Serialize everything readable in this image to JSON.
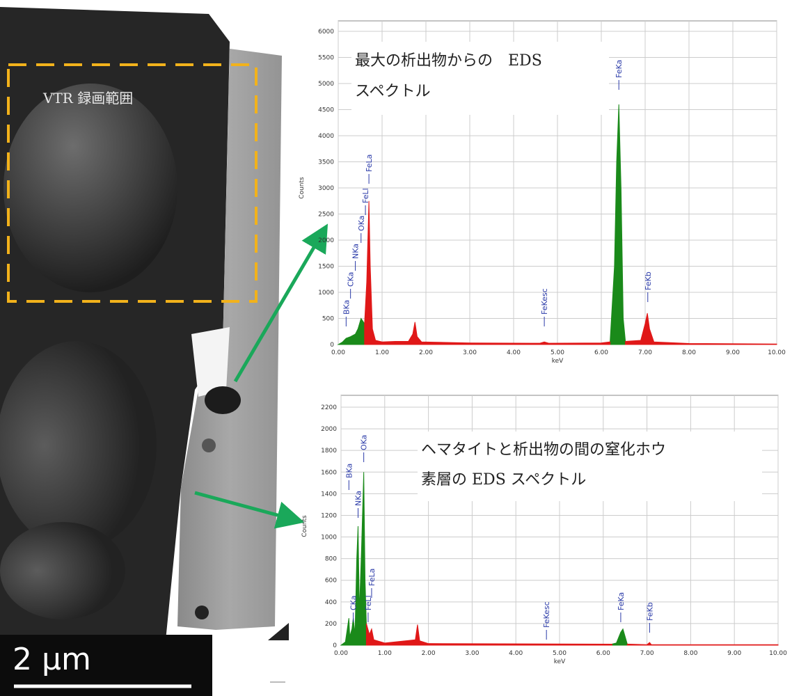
{
  "image": {
    "region_label": "VTR 録画範囲",
    "scale_bar": "2 µm"
  },
  "chart_data": [
    {
      "type": "area",
      "annotation_lines": [
        "最大の析出物からの　EDS",
        "スペクトル"
      ],
      "y_label": "Counts",
      "x_label": "keV",
      "x": [
        0,
        0.1,
        0.18,
        0.28,
        0.39,
        0.45,
        0.52,
        0.6,
        0.65,
        0.7,
        0.73,
        0.78,
        0.85,
        1.0,
        1.3,
        1.6,
        1.7,
        1.75,
        1.8,
        1.9,
        3.0,
        4.6,
        4.7,
        4.8,
        6.0,
        6.2,
        6.3,
        6.35,
        6.4,
        6.45,
        6.5,
        6.55,
        6.9,
        7.0,
        7.05,
        7.1,
        7.2,
        8.0,
        10.0
      ],
      "series": [
        {
          "color": "#1a8a1a",
          "values": [
            0,
            50,
            120,
            150,
            200,
            300,
            500,
            400,
            null,
            null,
            null,
            null,
            null,
            null,
            null,
            null,
            null,
            null,
            null,
            null,
            null,
            null,
            null,
            null,
            null,
            50,
            1500,
            3500,
            4600,
            3000,
            500,
            60,
            null,
            null,
            null,
            null,
            null,
            null,
            null
          ]
        },
        {
          "color": "#e01818",
          "values": [
            null,
            null,
            null,
            null,
            null,
            null,
            null,
            400,
            1200,
            2750,
            1500,
            300,
            80,
            50,
            60,
            60,
            200,
            430,
            150,
            50,
            30,
            25,
            50,
            25,
            30,
            50,
            null,
            null,
            null,
            null,
            null,
            60,
            80,
            400,
            600,
            300,
            50,
            20,
            10
          ]
        }
      ],
      "peak_labels": [
        {
          "label": "BKa",
          "x": 0.18
        },
        {
          "label": "CKa",
          "x": 0.28
        },
        {
          "label": "NKa",
          "x": 0.39
        },
        {
          "label": "OKa",
          "x": 0.52
        },
        {
          "label": "FeLl",
          "x": 0.62
        },
        {
          "label": "FeLa",
          "x": 0.7
        },
        {
          "label": "FeKesc",
          "x": 4.7
        },
        {
          "label": "FeKa",
          "x": 6.4
        },
        {
          "label": "FeKb",
          "x": 7.06
        }
      ],
      "xlim": [
        0,
        10
      ],
      "ylim": [
        0,
        6000
      ],
      "xticks": [
        {
          "value": 0,
          "label": "0.00"
        },
        {
          "value": 1,
          "label": "1.00"
        },
        {
          "value": 2,
          "label": "2.00"
        },
        {
          "value": 3,
          "label": "3.00"
        },
        {
          "value": 4,
          "label": "4.00"
        },
        {
          "value": 5,
          "label": "5.00"
        },
        {
          "value": 6,
          "label": "6.00"
        },
        {
          "value": 7,
          "label": "7.00"
        },
        {
          "value": 8,
          "label": "8.00"
        },
        {
          "value": 9,
          "label": "9.00"
        },
        {
          "value": 10,
          "label": "10.00"
        }
      ],
      "yticks": [
        0,
        500,
        1000,
        1500,
        2000,
        2500,
        3000,
        3500,
        4000,
        4500,
        5000,
        5500,
        6000
      ],
      "grid": true
    },
    {
      "type": "area",
      "annotation_lines": [
        "ヘマタイトと析出物の間の窒化ホウ",
        "素層の EDS スペクトル"
      ],
      "y_label": "Counts",
      "x_label": "keV",
      "x": [
        0,
        0.1,
        0.18,
        0.2,
        0.25,
        0.28,
        0.32,
        0.36,
        0.39,
        0.42,
        0.47,
        0.52,
        0.55,
        0.58,
        0.65,
        0.7,
        0.75,
        1.0,
        1.7,
        1.75,
        1.8,
        2.0,
        6.2,
        6.3,
        6.4,
        6.45,
        6.5,
        6.55,
        7.0,
        7.06,
        7.1,
        10.0
      ],
      "series": [
        {
          "color": "#1a8a1a",
          "values": [
            0,
            30,
            250,
            80,
            150,
            250,
            100,
            800,
            1100,
            300,
            900,
            1600,
            600,
            200,
            null,
            null,
            null,
            null,
            null,
            null,
            null,
            null,
            10,
            20,
            120,
            150,
            80,
            10,
            null,
            null,
            null,
            null
          ]
        },
        {
          "color": "#e01818",
          "values": [
            null,
            null,
            null,
            null,
            null,
            null,
            null,
            null,
            null,
            null,
            null,
            null,
            null,
            200,
            100,
            150,
            50,
            20,
            50,
            190,
            40,
            15,
            10,
            null,
            null,
            null,
            null,
            10,
            5,
            25,
            5,
            5
          ]
        }
      ],
      "peak_labels": [
        {
          "label": "BKa",
          "x": 0.18
        },
        {
          "label": "CKa",
          "x": 0.28
        },
        {
          "label": "NKa",
          "x": 0.39
        },
        {
          "label": "OKa",
          "x": 0.52
        },
        {
          "label": "FeLl",
          "x": 0.62
        },
        {
          "label": "FeLa",
          "x": 0.7
        },
        {
          "label": "FeKesc",
          "x": 4.7
        },
        {
          "label": "FeKa",
          "x": 6.4
        },
        {
          "label": "FeKb",
          "x": 7.06
        }
      ],
      "xlim": [
        0,
        10
      ],
      "ylim": [
        0,
        2200
      ],
      "xticks": [
        {
          "value": 0,
          "label": "0.00"
        },
        {
          "value": 1,
          "label": "1.00"
        },
        {
          "value": 2,
          "label": "2.00"
        },
        {
          "value": 3,
          "label": "3.00"
        },
        {
          "value": 4,
          "label": "4.00"
        },
        {
          "value": 5,
          "label": "5.00"
        },
        {
          "value": 6,
          "label": "6.00"
        },
        {
          "value": 7,
          "label": "7.00"
        },
        {
          "value": 8,
          "label": "8.00"
        },
        {
          "value": 9,
          "label": "9.00"
        },
        {
          "value": 10,
          "label": "10.00"
        }
      ],
      "yticks": [
        0,
        200,
        400,
        600,
        800,
        1000,
        1200,
        1400,
        1600,
        1800,
        2000,
        2200
      ],
      "grid": true
    }
  ]
}
